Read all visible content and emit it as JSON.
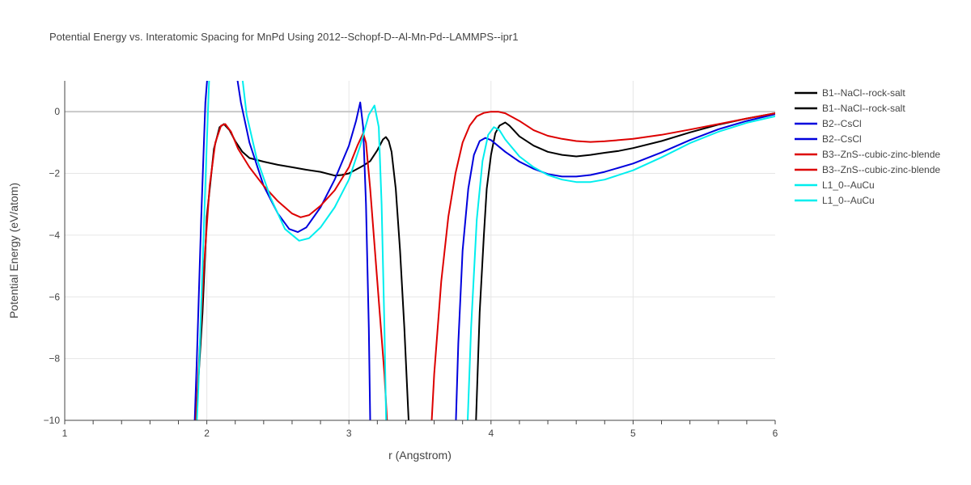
{
  "chart_data": {
    "type": "line",
    "title": "Potential Energy vs. Interatomic Spacing for MnPd Using 2012--Schopf-D--Al-Mn-Pd--LAMMPS--ipr1",
    "xlabel": "r (Angstrom)",
    "ylabel": "Potential Energy (eV/atom)",
    "xlim": [
      1,
      6
    ],
    "ylim": [
      -10,
      1
    ],
    "xticks": [
      1,
      2,
      3,
      4,
      5,
      6
    ],
    "xtick_labels": [
      "1",
      "2",
      "3",
      "4",
      "5",
      "6"
    ],
    "yticks": [
      -10,
      -8,
      -6,
      -4,
      -2,
      0
    ],
    "ytick_labels": [
      "−10",
      "−8",
      "−6",
      "−4",
      "−2",
      "0"
    ],
    "grid": true,
    "legend_position": "right",
    "series": [
      {
        "name": "B1--NaCl--rock-salt",
        "color": "#000000",
        "points": [
          [
            1.9,
            -12
          ],
          [
            1.93,
            -9.5
          ],
          [
            1.97,
            -6.5
          ],
          [
            2.0,
            -3.4
          ],
          [
            2.05,
            -1.2
          ],
          [
            2.09,
            -0.5
          ],
          [
            2.12,
            -0.4
          ],
          [
            2.16,
            -0.6
          ],
          [
            2.2,
            -0.95
          ],
          [
            2.25,
            -1.3
          ],
          [
            2.3,
            -1.5
          ],
          [
            2.4,
            -1.62
          ],
          [
            2.5,
            -1.72
          ],
          [
            2.6,
            -1.8
          ],
          [
            2.7,
            -1.88
          ],
          [
            2.8,
            -1.95
          ],
          [
            2.9,
            -2.07
          ],
          [
            2.95,
            -2.05
          ],
          [
            3.0,
            -2.0
          ],
          [
            3.1,
            -1.75
          ],
          [
            3.15,
            -1.6
          ],
          [
            3.2,
            -1.25
          ],
          [
            3.24,
            -0.9
          ],
          [
            3.26,
            -0.82
          ],
          [
            3.28,
            -0.95
          ],
          [
            3.3,
            -1.3
          ],
          [
            3.33,
            -2.5
          ],
          [
            3.36,
            -4.5
          ],
          [
            3.39,
            -7.0
          ],
          [
            3.42,
            -10.0
          ],
          [
            3.44,
            -12
          ]
        ]
      },
      {
        "name": "B1--NaCl--rock-salt",
        "color": "#000000",
        "points": [
          [
            3.88,
            -12
          ],
          [
            3.92,
            -6.5
          ],
          [
            3.95,
            -4.0
          ],
          [
            3.97,
            -2.5
          ],
          [
            4.0,
            -1.4
          ],
          [
            4.03,
            -0.7
          ],
          [
            4.06,
            -0.45
          ],
          [
            4.1,
            -0.35
          ],
          [
            4.13,
            -0.45
          ],
          [
            4.2,
            -0.8
          ],
          [
            4.3,
            -1.1
          ],
          [
            4.4,
            -1.3
          ],
          [
            4.5,
            -1.4
          ],
          [
            4.6,
            -1.45
          ],
          [
            4.7,
            -1.4
          ],
          [
            4.8,
            -1.33
          ],
          [
            4.9,
            -1.27
          ],
          [
            5.0,
            -1.18
          ],
          [
            5.2,
            -0.95
          ],
          [
            5.4,
            -0.67
          ],
          [
            5.6,
            -0.42
          ],
          [
            5.8,
            -0.22
          ],
          [
            6.0,
            -0.05
          ]
        ]
      },
      {
        "name": "B2--CsCl",
        "color": "#0000dd",
        "points": [
          [
            1.9,
            -12
          ],
          [
            1.93,
            -8.0
          ],
          [
            1.96,
            -3.5
          ],
          [
            1.99,
            0.3
          ],
          [
            2.01,
            1.5
          ]
        ]
      },
      {
        "name": "B2--CsCl",
        "color": "#0000dd",
        "points": [
          [
            2.2,
            1.5
          ],
          [
            2.24,
            0.3
          ],
          [
            2.3,
            -1.0
          ],
          [
            2.4,
            -2.4
          ],
          [
            2.5,
            -3.3
          ],
          [
            2.58,
            -3.8
          ],
          [
            2.64,
            -3.9
          ],
          [
            2.7,
            -3.75
          ],
          [
            2.8,
            -3.1
          ],
          [
            2.9,
            -2.2
          ],
          [
            3.0,
            -1.1
          ],
          [
            3.05,
            -0.3
          ],
          [
            3.08,
            0.3
          ],
          [
            3.1,
            -0.5
          ],
          [
            3.12,
            -3.0
          ],
          [
            3.14,
            -7.0
          ],
          [
            3.15,
            -10.0
          ],
          [
            3.16,
            -12
          ]
        ]
      },
      {
        "name": "B2--CsCl",
        "color": "#0000dd",
        "points": [
          [
            3.74,
            -12
          ],
          [
            3.77,
            -7.5
          ],
          [
            3.8,
            -4.5
          ],
          [
            3.84,
            -2.5
          ],
          [
            3.88,
            -1.4
          ],
          [
            3.92,
            -0.95
          ],
          [
            3.96,
            -0.85
          ],
          [
            4.0,
            -0.92
          ],
          [
            4.1,
            -1.3
          ],
          [
            4.2,
            -1.62
          ],
          [
            4.3,
            -1.85
          ],
          [
            4.4,
            -2.02
          ],
          [
            4.5,
            -2.1
          ],
          [
            4.6,
            -2.1
          ],
          [
            4.7,
            -2.05
          ],
          [
            4.8,
            -1.95
          ],
          [
            5.0,
            -1.68
          ],
          [
            5.2,
            -1.32
          ],
          [
            5.4,
            -0.92
          ],
          [
            5.6,
            -0.57
          ],
          [
            5.8,
            -0.3
          ],
          [
            6.0,
            -0.08
          ]
        ]
      },
      {
        "name": "B3--ZnS--cubic-zinc-blende",
        "color": "#dd0000",
        "points": [
          [
            1.9,
            -12
          ],
          [
            1.94,
            -8.5
          ],
          [
            1.98,
            -5.0
          ],
          [
            2.02,
            -2.4
          ],
          [
            2.06,
            -1.0
          ],
          [
            2.1,
            -0.45
          ],
          [
            2.13,
            -0.4
          ],
          [
            2.17,
            -0.65
          ],
          [
            2.22,
            -1.2
          ],
          [
            2.3,
            -1.8
          ],
          [
            2.4,
            -2.4
          ],
          [
            2.5,
            -2.9
          ],
          [
            2.6,
            -3.3
          ],
          [
            2.66,
            -3.42
          ],
          [
            2.72,
            -3.35
          ],
          [
            2.8,
            -3.05
          ],
          [
            2.9,
            -2.55
          ],
          [
            3.0,
            -1.8
          ],
          [
            3.06,
            -1.1
          ],
          [
            3.1,
            -0.7
          ],
          [
            3.12,
            -1.0
          ],
          [
            3.15,
            -2.5
          ],
          [
            3.2,
            -5.5
          ],
          [
            3.25,
            -8.5
          ],
          [
            3.28,
            -11
          ],
          [
            3.3,
            -12
          ]
        ]
      },
      {
        "name": "B3--ZnS--cubic-zinc-blende",
        "color": "#dd0000",
        "points": [
          [
            3.56,
            -12
          ],
          [
            3.6,
            -8.5
          ],
          [
            3.65,
            -5.5
          ],
          [
            3.7,
            -3.4
          ],
          [
            3.75,
            -2.0
          ],
          [
            3.8,
            -1.0
          ],
          [
            3.85,
            -0.45
          ],
          [
            3.9,
            -0.15
          ],
          [
            3.95,
            -0.04
          ],
          [
            4.0,
            0.0
          ],
          [
            4.05,
            0.0
          ],
          [
            4.1,
            -0.05
          ],
          [
            4.2,
            -0.3
          ],
          [
            4.3,
            -0.6
          ],
          [
            4.4,
            -0.78
          ],
          [
            4.5,
            -0.88
          ],
          [
            4.6,
            -0.95
          ],
          [
            4.7,
            -0.98
          ],
          [
            4.8,
            -0.96
          ],
          [
            5.0,
            -0.88
          ],
          [
            5.2,
            -0.75
          ],
          [
            5.4,
            -0.58
          ],
          [
            5.6,
            -0.4
          ],
          [
            5.8,
            -0.22
          ],
          [
            6.0,
            -0.05
          ]
        ]
      },
      {
        "name": "L1_0--AuCu",
        "color": "#00eeee",
        "points": [
          [
            1.91,
            -12
          ],
          [
            1.94,
            -9.0
          ],
          [
            1.97,
            -5.0
          ],
          [
            2.0,
            -1.0
          ],
          [
            2.02,
            1.5
          ]
        ]
      },
      {
        "name": "L1_0--AuCu",
        "color": "#00eeee",
        "points": [
          [
            2.24,
            1.5
          ],
          [
            2.28,
            -0.1
          ],
          [
            2.35,
            -1.5
          ],
          [
            2.45,
            -2.8
          ],
          [
            2.55,
            -3.8
          ],
          [
            2.65,
            -4.18
          ],
          [
            2.72,
            -4.1
          ],
          [
            2.8,
            -3.75
          ],
          [
            2.9,
            -3.1
          ],
          [
            3.0,
            -2.2
          ],
          [
            3.08,
            -1.1
          ],
          [
            3.14,
            -0.1
          ],
          [
            3.18,
            0.2
          ],
          [
            3.21,
            -0.5
          ],
          [
            3.23,
            -3.0
          ],
          [
            3.25,
            -7.0
          ],
          [
            3.27,
            -12
          ]
        ]
      },
      {
        "name": "L1_0--AuCu",
        "color": "#00eeee",
        "points": [
          [
            3.82,
            -12
          ],
          [
            3.86,
            -7.0
          ],
          [
            3.9,
            -3.5
          ],
          [
            3.94,
            -1.6
          ],
          [
            3.98,
            -0.75
          ],
          [
            4.02,
            -0.5
          ],
          [
            4.06,
            -0.6
          ],
          [
            4.1,
            -0.9
          ],
          [
            4.2,
            -1.45
          ],
          [
            4.3,
            -1.8
          ],
          [
            4.4,
            -2.05
          ],
          [
            4.5,
            -2.2
          ],
          [
            4.6,
            -2.28
          ],
          [
            4.7,
            -2.28
          ],
          [
            4.8,
            -2.2
          ],
          [
            5.0,
            -1.9
          ],
          [
            5.2,
            -1.48
          ],
          [
            5.4,
            -1.02
          ],
          [
            5.6,
            -0.65
          ],
          [
            5.8,
            -0.36
          ],
          [
            6.0,
            -0.15
          ]
        ]
      }
    ]
  }
}
